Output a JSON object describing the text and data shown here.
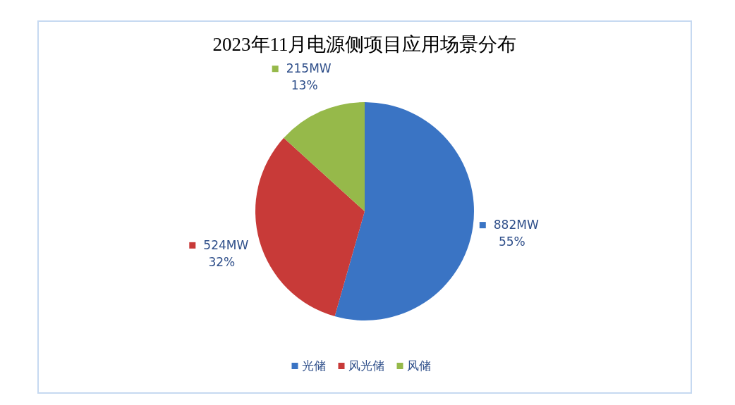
{
  "chart_data": {
    "type": "pie",
    "title": "2023年11月电源侧项目应用场景分布",
    "categories": [
      "光储",
      "风光储",
      "风储"
    ],
    "values": [
      882,
      524,
      215
    ],
    "colors": [
      "#3a74c4",
      "#c83a38",
      "#96b94a"
    ],
    "value_labels": [
      "882MW\n55%",
      "524MW\n32%",
      "215MW\n13%"
    ],
    "legend": "bottom"
  }
}
